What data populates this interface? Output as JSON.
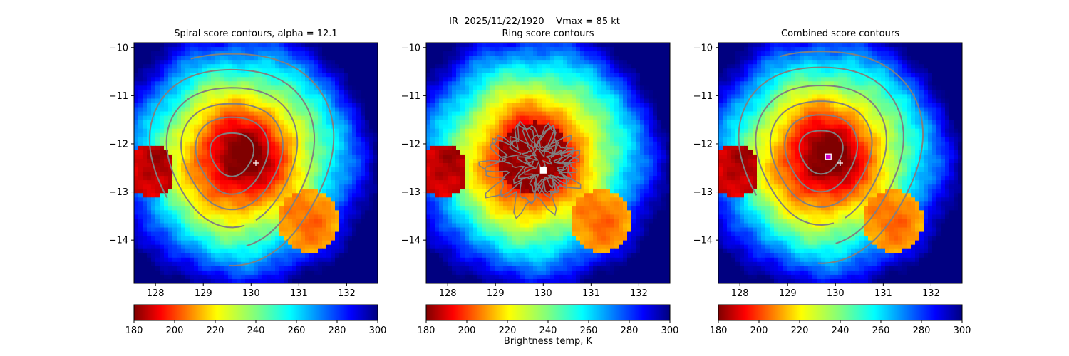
{
  "figure": {
    "suptitle": "IR  2025/11/22/1920    Vmax = 85 kt",
    "colorbar_label": "Brightness temp, K"
  },
  "chart_data": [
    {
      "type": "heatmap",
      "title": "Spiral score contours, alpha = 12.1",
      "xlim": [
        127.55,
        132.65
      ],
      "ylim": [
        -14.9,
        -9.9
      ],
      "xticks": [
        128,
        129,
        130,
        131,
        132
      ],
      "yticks": [
        -10,
        -11,
        -12,
        -13,
        -14
      ],
      "colormap": "jet_r",
      "clim": [
        180,
        300
      ],
      "colorbar_ticks": [
        180,
        200,
        220,
        240,
        260,
        280,
        300
      ],
      "contour_color": "#808080",
      "contour_centre": [
        129.6,
        -12.2
      ],
      "markers": [
        {
          "symbol": "+",
          "lon": 130.1,
          "lat": -12.4,
          "color": "#ffffff"
        }
      ]
    },
    {
      "type": "heatmap",
      "title": "Ring score contours",
      "xlim": [
        127.55,
        132.65
      ],
      "ylim": [
        -14.9,
        -9.9
      ],
      "xticks": [
        128,
        129,
        130,
        131,
        132
      ],
      "yticks": [
        -10,
        -11,
        -12,
        -13,
        -14
      ],
      "colormap": "jet_r",
      "clim": [
        180,
        300
      ],
      "colorbar_ticks": [
        180,
        200,
        220,
        240,
        260,
        280,
        300
      ],
      "contour_color": "#808080",
      "markers": [
        {
          "symbol": "square",
          "lon": 130.0,
          "lat": -12.55,
          "color": "#ffffff"
        }
      ]
    },
    {
      "type": "heatmap",
      "title": "Combined score contours",
      "xlim": [
        127.55,
        132.65
      ],
      "ylim": [
        -14.9,
        -9.9
      ],
      "xticks": [
        128,
        129,
        130,
        131,
        132
      ],
      "yticks": [
        -10,
        -11,
        -12,
        -13,
        -14
      ],
      "colormap": "jet_r",
      "clim": [
        180,
        300
      ],
      "colorbar_ticks": [
        180,
        200,
        220,
        240,
        260,
        280,
        300
      ],
      "contour_color": "#808080",
      "contour_centre": [
        129.7,
        -12.15
      ],
      "markers": [
        {
          "symbol": "square",
          "lon": 129.85,
          "lat": -12.27,
          "color": "#cc00cc"
        },
        {
          "symbol": "+",
          "lon": 130.1,
          "lat": -12.4,
          "color": "#ffffff"
        }
      ]
    }
  ]
}
